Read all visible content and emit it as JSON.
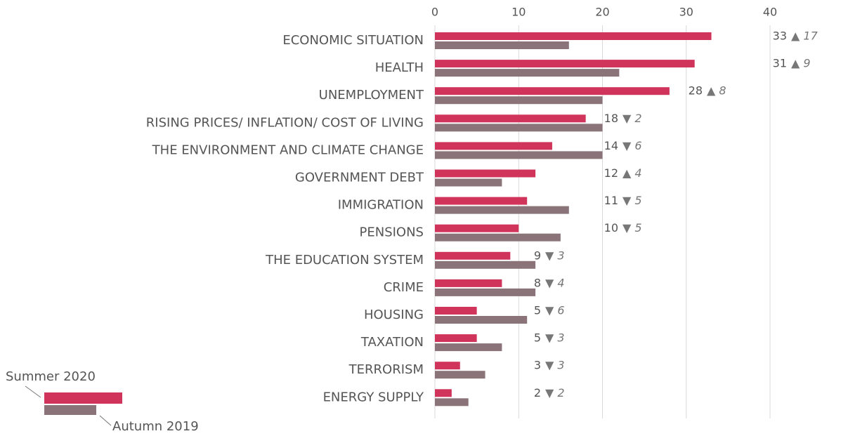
{
  "chart_data": {
    "type": "hbar",
    "categories": [
      "ECONOMIC SITUATION",
      "HEALTH",
      "UNEMPLOYMENT",
      "RISING PRICES/ INFLATION/ COST OF LIVING",
      "THE ENVIRONMENT AND CLIMATE CHANGE",
      "GOVERNMENT DEBT",
      "IMMIGRATION",
      "PENSIONS",
      "THE EDUCATION SYSTEM",
      "CRIME",
      "HOUSING",
      "TAXATION",
      "TERRORISM",
      "ENERGY SUPPLY"
    ],
    "series": [
      {
        "name": "Summer 2020",
        "color": "#d1345b",
        "values": [
          33,
          31,
          28,
          18,
          14,
          12,
          11,
          10,
          9,
          8,
          5,
          5,
          3,
          2
        ]
      },
      {
        "name": "Autumn 2019",
        "color": "#8a7479",
        "values": [
          16,
          22,
          20,
          20,
          20,
          8,
          16,
          15,
          12,
          12,
          11,
          8,
          6,
          4
        ]
      }
    ],
    "change_labels": [
      "▲ 17",
      "▲ 9",
      "▲ 8",
      "▼ 2",
      "▼ 6",
      "▲ 4",
      "▼ 5",
      "▼ 5",
      "▼ 3",
      "▼ 4",
      "▼ 6",
      "▼ 3",
      "▼ 3",
      "▼ 2"
    ],
    "xlim": [
      0,
      40
    ],
    "xticks": [
      0,
      10,
      20,
      30,
      40
    ],
    "grid": true
  }
}
